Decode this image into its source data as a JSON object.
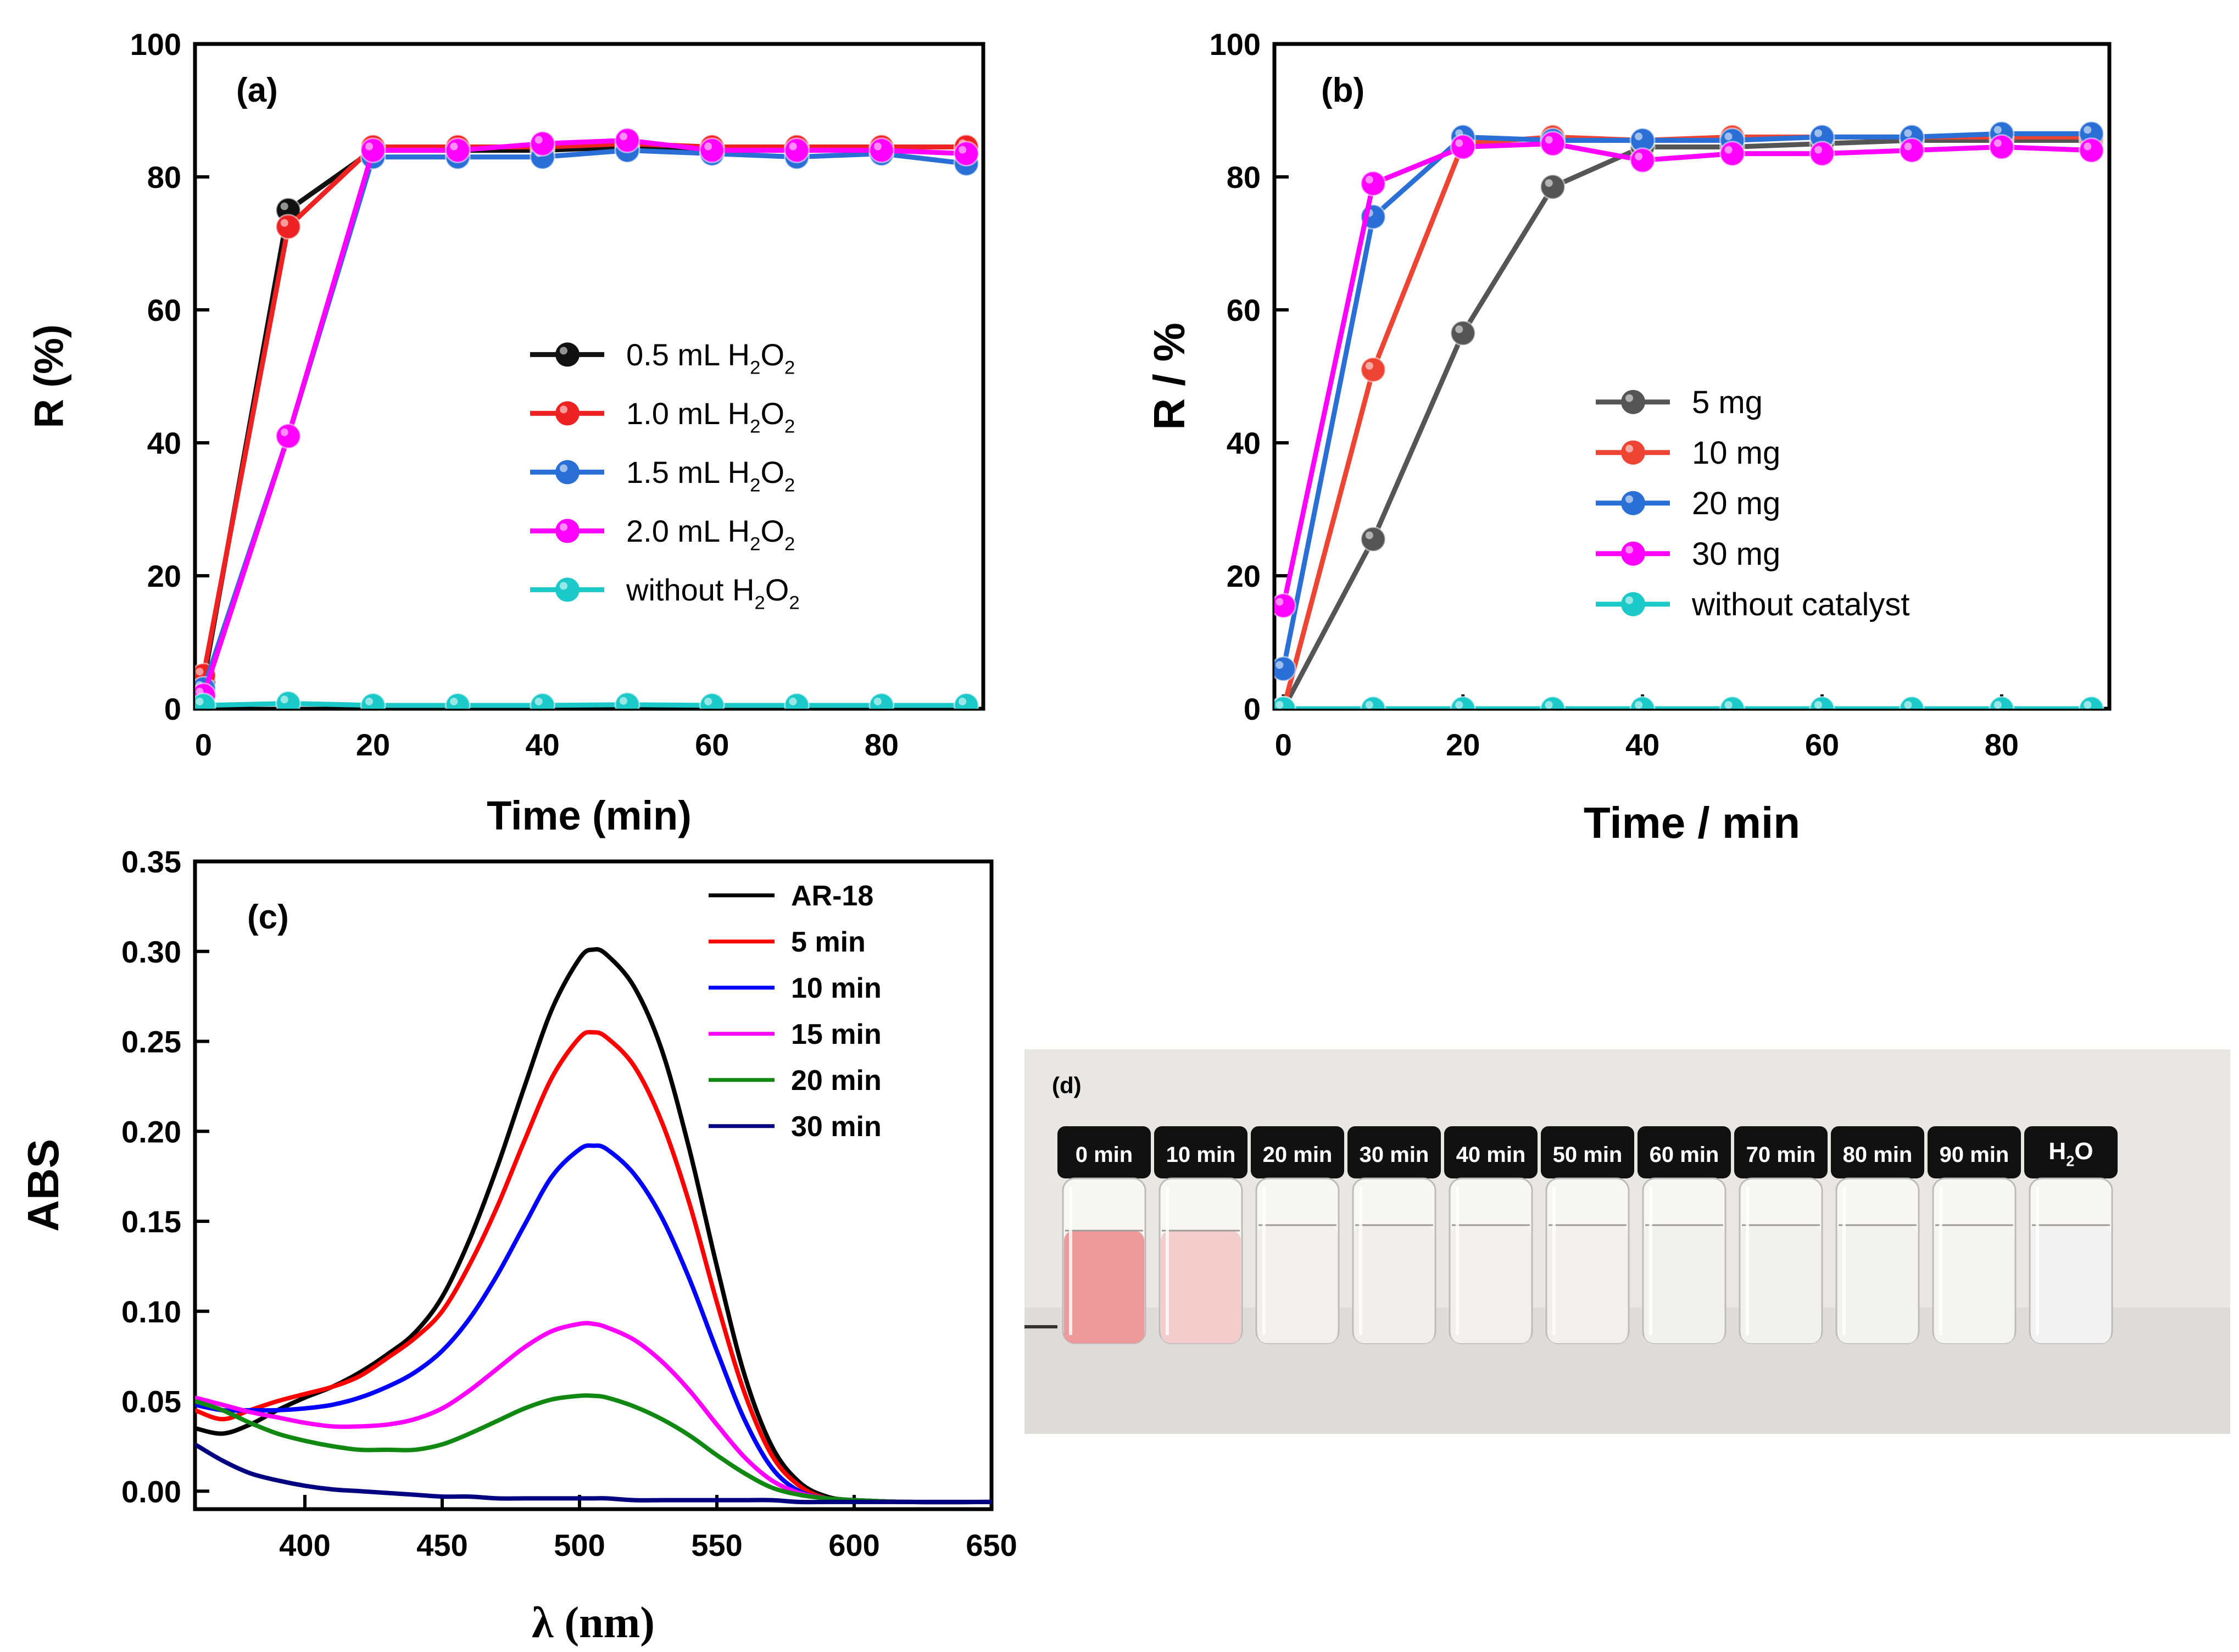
{
  "chart_data": [
    {
      "panel": "a",
      "type": "line",
      "panel_label": "(a)",
      "xlabel": "Time (min)",
      "ylabel": "R (%)",
      "xlim": [
        -1,
        92
      ],
      "ylim": [
        0,
        100
      ],
      "xticks": [
        0,
        20,
        40,
        60,
        80
      ],
      "yticks": [
        0,
        20,
        40,
        60,
        80,
        100
      ],
      "grid": false,
      "legend_position": "center-right",
      "x": [
        0,
        10,
        20,
        30,
        40,
        50,
        60,
        70,
        80,
        90
      ],
      "series": [
        {
          "name": "0.5 mL H2O2",
          "label_main": "0.5 mL H",
          "label_sub": "2",
          "label_mid": "O",
          "label_sub2": "2",
          "color": "#111111",
          "values": [
            4,
            75,
            84,
            84,
            84,
            84.5,
            84,
            84,
            84.5,
            84.5
          ]
        },
        {
          "name": "1.0 mL H2O2",
          "label_main": "1.0 mL H",
          "label_sub": "2",
          "label_mid": "O",
          "label_sub2": "2",
          "color": "#ee2222",
          "values": [
            5,
            72.5,
            84.5,
            84.5,
            84.5,
            85,
            84.5,
            84.5,
            84.5,
            84.5
          ]
        },
        {
          "name": "1.5 mL H2O2",
          "label_main": "1.5 mL H",
          "label_sub": "2",
          "label_mid": "O",
          "label_sub2": "2",
          "color": "#2a6fd6",
          "values": [
            3,
            41,
            83,
            83,
            83,
            84,
            83.5,
            83,
            83.5,
            82
          ]
        },
        {
          "name": "2.0 mL H2O2",
          "label_main": "2.0 mL H",
          "label_sub": "2",
          "label_mid": "O",
          "label_sub2": "2",
          "color": "#ff00ff",
          "values": [
            2,
            41,
            84,
            84,
            85,
            85.5,
            84,
            84,
            84,
            83.5
          ]
        },
        {
          "name": "without H2O2",
          "label_main": "without H",
          "label_sub": "2",
          "label_mid": "O",
          "label_sub2": "2",
          "color": "#1cc9c9",
          "values": [
            0.5,
            0.8,
            0.5,
            0.5,
            0.5,
            0.6,
            0.5,
            0.5,
            0.5,
            0.5
          ]
        }
      ]
    },
    {
      "panel": "b",
      "type": "line",
      "panel_label": "(b)",
      "xlabel": "Time / min",
      "ylabel": "R / %",
      "xlim": [
        -1,
        92
      ],
      "ylim": [
        0,
        100
      ],
      "xticks": [
        0,
        20,
        40,
        60,
        80
      ],
      "yticks": [
        0,
        20,
        40,
        60,
        80,
        100
      ],
      "grid": false,
      "legend_position": "center-right",
      "x": [
        0,
        10,
        20,
        30,
        40,
        50,
        60,
        70,
        80,
        90
      ],
      "series": [
        {
          "name": "5 mg",
          "color": "#555555",
          "values": [
            0,
            25.5,
            56.5,
            78.5,
            84.5,
            84.5,
            85,
            85.5,
            85.5,
            85.5
          ]
        },
        {
          "name": "10 mg",
          "color": "#ee4433",
          "values": [
            0,
            51,
            85,
            86,
            85.5,
            86,
            86,
            86,
            86,
            86
          ]
        },
        {
          "name": "20 mg",
          "color": "#2a6fd6",
          "values": [
            6,
            74,
            86,
            85.5,
            85.5,
            85.5,
            86,
            86,
            86.5,
            86.5
          ]
        },
        {
          "name": "30 mg",
          "color": "#ff00ff",
          "values": [
            15.5,
            79,
            84.5,
            85,
            82.5,
            83.5,
            83.5,
            84,
            84.5,
            84
          ]
        },
        {
          "name": "without catalyst",
          "color": "#1cc9c9",
          "values": [
            0,
            0,
            0,
            0,
            0,
            0,
            0,
            0,
            0,
            0
          ]
        }
      ]
    },
    {
      "panel": "c",
      "type": "line",
      "panel_label": "(c)",
      "xlabel": "λ (nm)",
      "ylabel": "ABS",
      "xlim": [
        360,
        650
      ],
      "ylim": [
        -0.01,
        0.35
      ],
      "xticks": [
        400,
        450,
        500,
        550,
        600,
        650
      ],
      "yticks": [
        0.0,
        0.05,
        0.1,
        0.15,
        0.2,
        0.25,
        0.3,
        0.35
      ],
      "ytick_labels": [
        "0.00",
        "0.05",
        "0.10",
        "0.15",
        "0.20",
        "0.25",
        "0.30",
        "0.35"
      ],
      "grid": false,
      "legend_position": "top-right",
      "x": [
        360,
        370,
        380,
        390,
        400,
        410,
        420,
        430,
        440,
        450,
        460,
        470,
        480,
        490,
        500,
        505,
        510,
        520,
        530,
        540,
        550,
        560,
        570,
        580,
        590,
        600,
        620,
        650
      ],
      "series": [
        {
          "name": "AR-18",
          "color": "#000000",
          "values": [
            0.035,
            0.032,
            0.037,
            0.045,
            0.052,
            0.058,
            0.066,
            0.076,
            0.088,
            0.108,
            0.14,
            0.18,
            0.225,
            0.268,
            0.296,
            0.301,
            0.298,
            0.28,
            0.245,
            0.19,
            0.125,
            0.065,
            0.025,
            0.005,
            -0.003,
            -0.005,
            -0.006,
            -0.006
          ]
        },
        {
          "name": "5 min",
          "color": "#ff0000",
          "values": [
            0.045,
            0.04,
            0.045,
            0.05,
            0.054,
            0.058,
            0.064,
            0.074,
            0.085,
            0.1,
            0.126,
            0.158,
            0.195,
            0.23,
            0.252,
            0.255,
            0.252,
            0.236,
            0.205,
            0.16,
            0.105,
            0.055,
            0.02,
            0.003,
            -0.004,
            -0.005,
            -0.006,
            -0.006
          ]
        },
        {
          "name": "10 min",
          "color": "#0000ff",
          "values": [
            0.048,
            0.045,
            0.045,
            0.045,
            0.046,
            0.048,
            0.052,
            0.058,
            0.066,
            0.078,
            0.096,
            0.12,
            0.148,
            0.175,
            0.19,
            0.192,
            0.19,
            0.176,
            0.152,
            0.118,
            0.078,
            0.04,
            0.013,
            0.0,
            -0.004,
            -0.005,
            -0.006,
            -0.006
          ]
        },
        {
          "name": "15 min",
          "color": "#ff00ff",
          "values": [
            0.052,
            0.048,
            0.044,
            0.041,
            0.038,
            0.036,
            0.036,
            0.037,
            0.04,
            0.046,
            0.056,
            0.068,
            0.08,
            0.089,
            0.093,
            0.093,
            0.091,
            0.084,
            0.072,
            0.056,
            0.037,
            0.019,
            0.006,
            -0.001,
            -0.004,
            -0.005,
            -0.006,
            -0.006
          ]
        },
        {
          "name": "20 min",
          "color": "#118811",
          "values": [
            0.05,
            0.045,
            0.038,
            0.032,
            0.028,
            0.025,
            0.023,
            0.023,
            0.023,
            0.026,
            0.032,
            0.039,
            0.046,
            0.051,
            0.053,
            0.053,
            0.052,
            0.047,
            0.04,
            0.031,
            0.02,
            0.01,
            0.002,
            -0.002,
            -0.004,
            -0.005,
            -0.006,
            -0.006
          ]
        },
        {
          "name": "30 min",
          "color": "#000080",
          "values": [
            0.026,
            0.017,
            0.01,
            0.006,
            0.003,
            0.001,
            0.0,
            -0.001,
            -0.002,
            -0.003,
            -0.003,
            -0.004,
            -0.004,
            -0.004,
            -0.004,
            -0.004,
            -0.004,
            -0.005,
            -0.005,
            -0.005,
            -0.005,
            -0.005,
            -0.005,
            -0.006,
            -0.006,
            -0.006,
            -0.006,
            -0.006
          ]
        }
      ]
    }
  ],
  "photo": {
    "panel_label": "(d)",
    "vial_labels": [
      "0 min",
      "10 min",
      "20 min",
      "30 min",
      "40 min",
      "50 min",
      "60 min",
      "70 min",
      "80 min",
      "90 min"
    ],
    "water_label_main": "H",
    "water_label_sub": "2",
    "water_label_end": "O",
    "liquid_colors": [
      "#ee9a9a",
      "#f2cdcb",
      "#f2f0ee",
      "#f0efed",
      "#f1f0ee",
      "#f1f0ef",
      "#f1f1ef",
      "#f1f1f0",
      "#f2f2f1",
      "#f4f4f3",
      "#f2f2f2"
    ]
  },
  "colors": {
    "axis": "#000000",
    "background": "#ffffff",
    "photo_background": "#e9e7e3"
  }
}
